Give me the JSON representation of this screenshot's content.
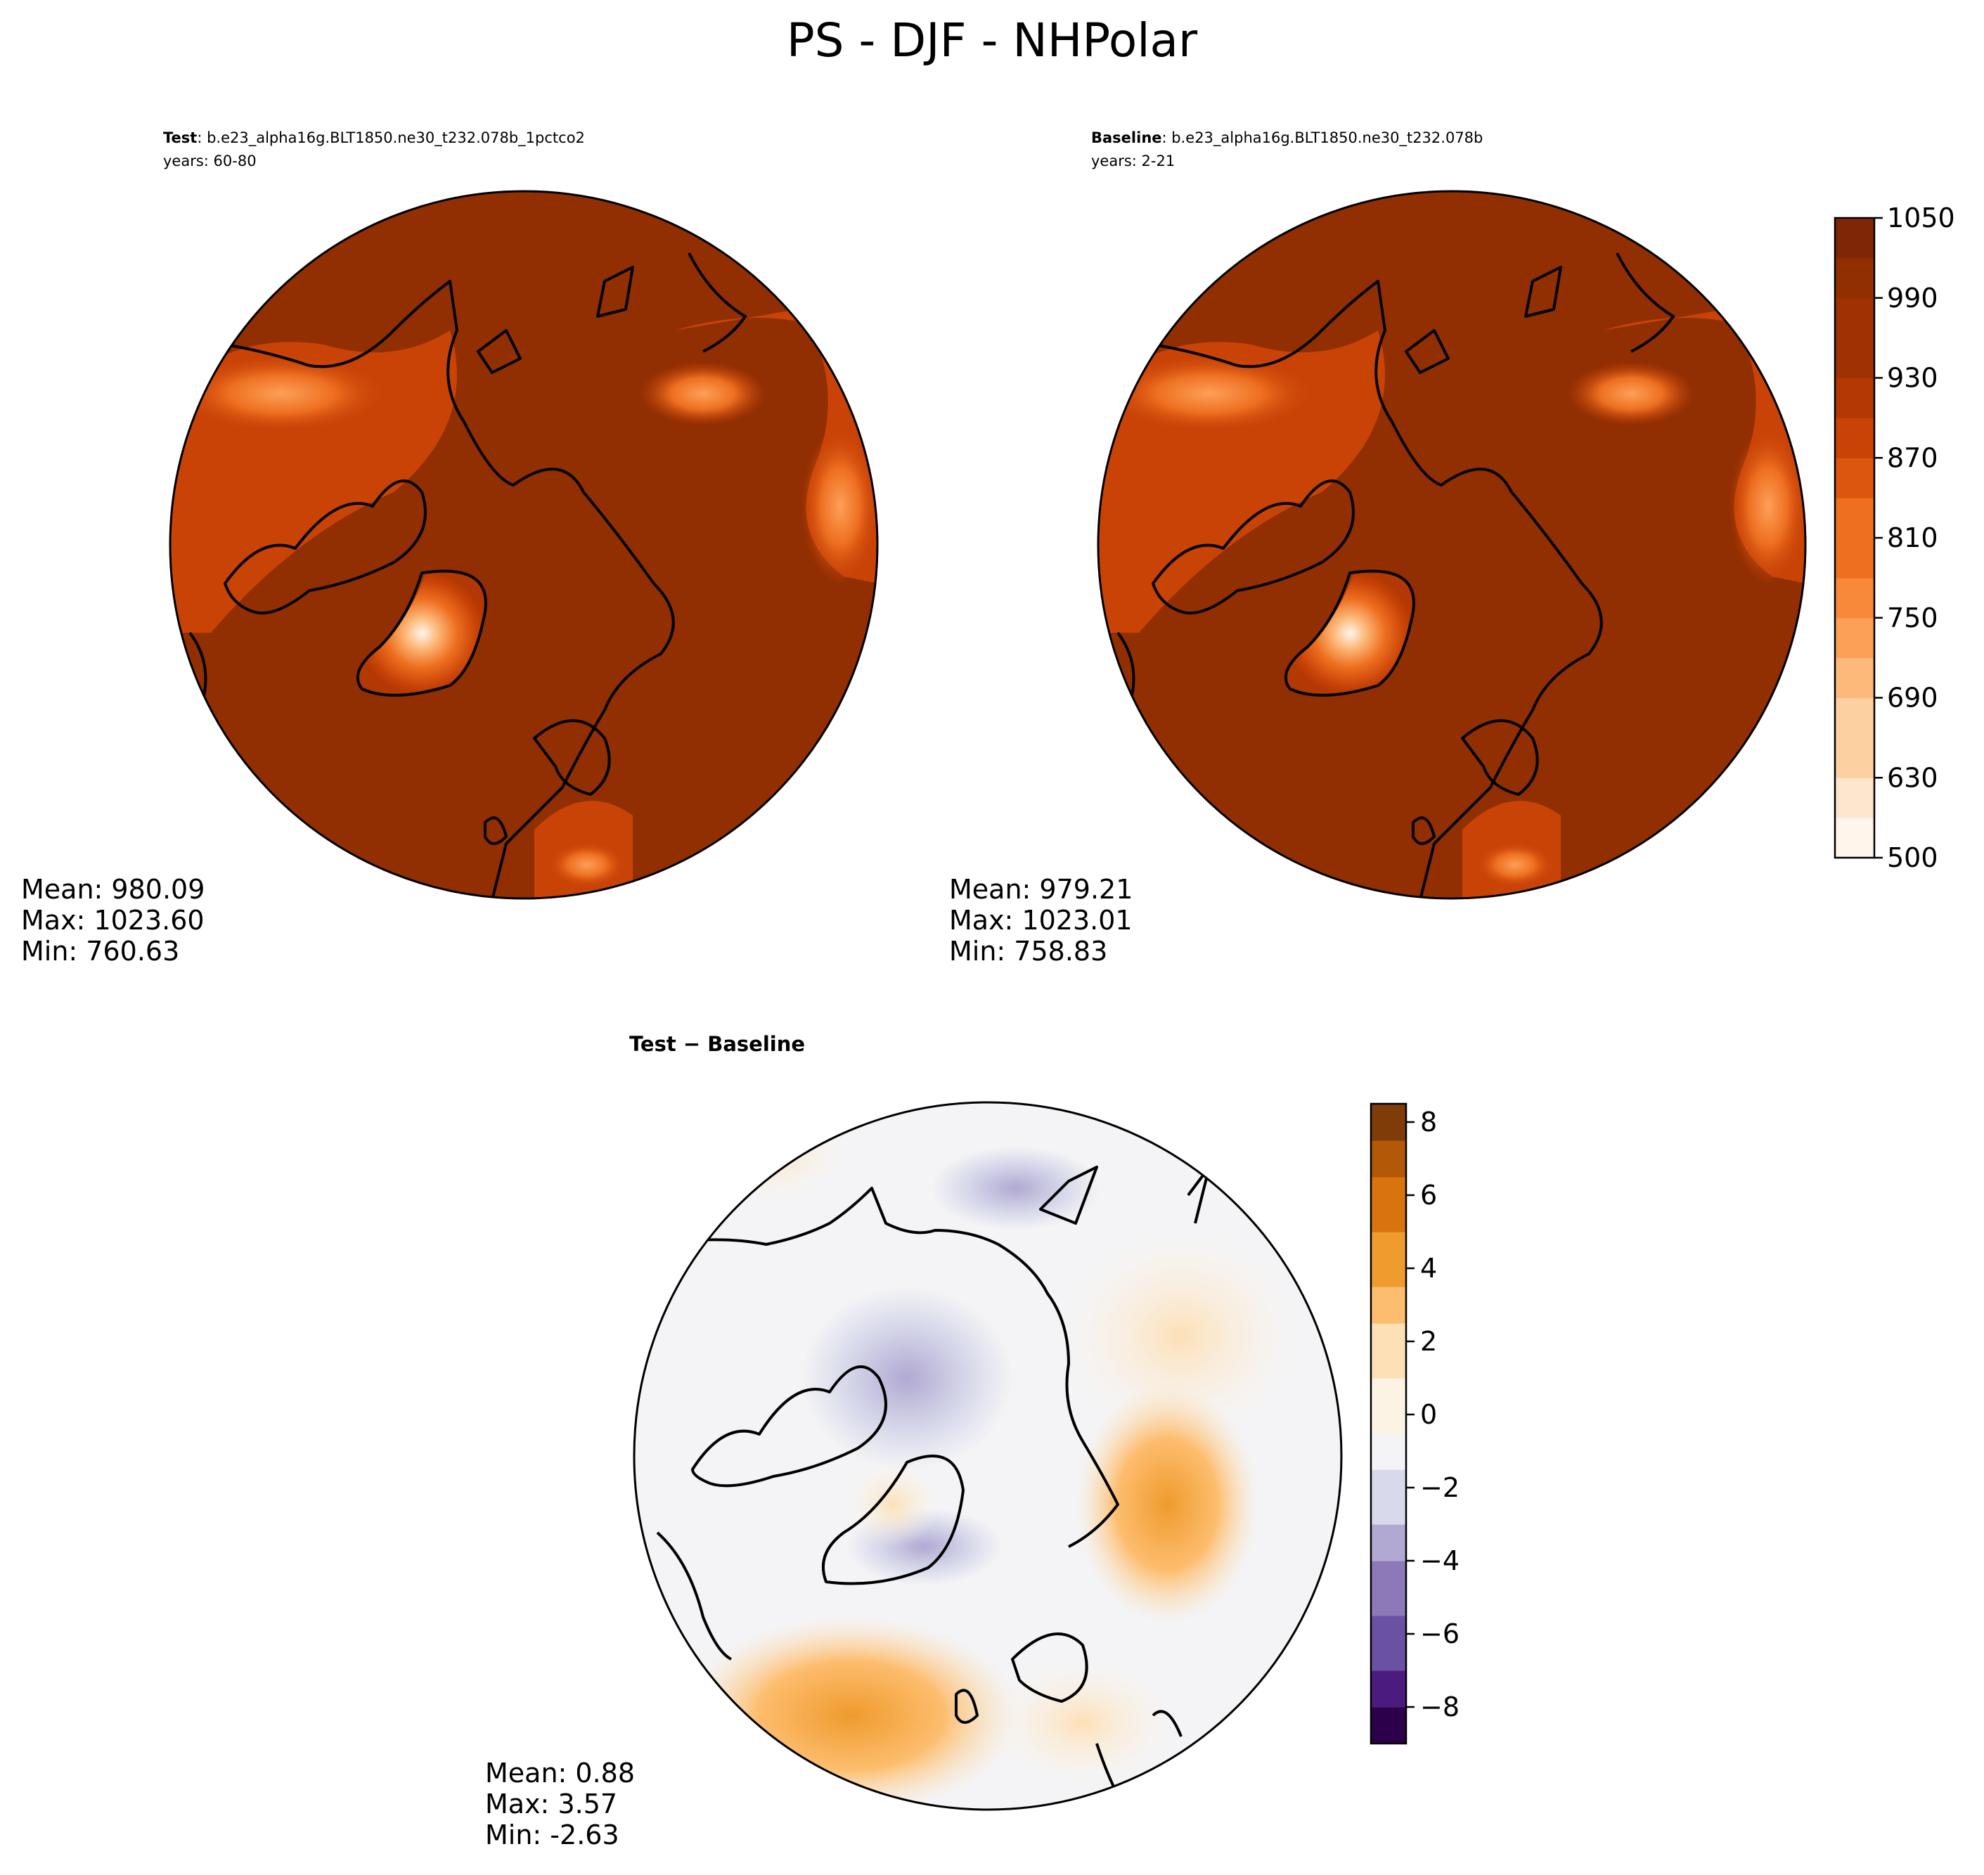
{
  "figure": {
    "title": "PS - DJF - NHPolar"
  },
  "colors": {
    "test_palette": [
      "#fff5eb",
      "#fee6ce",
      "#fdd0a2",
      "#fdb97a",
      "#fda057",
      "#f8883a",
      "#ee6f20",
      "#dd560f",
      "#c94307",
      "#b33803",
      "#9f3203",
      "#922f02",
      "#7f2704"
    ],
    "diff_palette": [
      "#2d004b",
      "#4b1b7f",
      "#6a51a3",
      "#8b79b8",
      "#b1a9d2",
      "#d8daeb",
      "#f4f4f6",
      "#fdf3e5",
      "#fde0b6",
      "#fdbd6e",
      "#ef9b2d",
      "#d8730e",
      "#b35806",
      "#7f3b08"
    ],
    "coastline": "#000000"
  },
  "panels": {
    "test": {
      "label_bold": "Test",
      "label_rest": ": b.e23_alpha16g.BLT1850.ne30_t232.078b_1pctco2",
      "years": "years: 60-80",
      "stats": {
        "mean": "Mean: 980.09",
        "max": "Max: 1023.60",
        "min": "Min: 760.63"
      }
    },
    "baseline": {
      "label_bold": "Baseline",
      "label_rest": ": b.e23_alpha16g.BLT1850.ne30_t232.078b",
      "years": "years: 2-21",
      "stats": {
        "mean": "Mean: 979.21",
        "max": "Max: 1023.01",
        "min": "Min: 758.83"
      }
    },
    "diff": {
      "label_bold": "Test − Baseline",
      "stats": {
        "mean": "Mean:  0.88",
        "max": "Max:  3.57",
        "min": "Min: -2.63"
      }
    }
  },
  "chart_data": [
    {
      "type": "heatmap",
      "name": "Test",
      "units": "",
      "colorbar_ticks": [
        "1050",
        "990",
        "930",
        "870",
        "810",
        "750",
        "690",
        "630",
        "500"
      ],
      "colorbar_range": [
        500,
        1050
      ],
      "stats": {
        "mean": 980.09,
        "max": 1023.6,
        "min": 760.63
      }
    },
    {
      "type": "heatmap",
      "name": "Baseline",
      "colorbar_range": [
        500,
        1050
      ],
      "stats": {
        "mean": 979.21,
        "max": 1023.01,
        "min": 758.83
      }
    },
    {
      "type": "heatmap",
      "name": "Test − Baseline",
      "colorbar_ticks": [
        "8",
        "6",
        "4",
        "2",
        "0",
        "−2",
        "−4",
        "−6",
        "−8"
      ],
      "colorbar_range": [
        -9,
        8.5
      ],
      "stats": {
        "mean": 0.88,
        "max": 3.57,
        "min": -2.63
      }
    }
  ]
}
